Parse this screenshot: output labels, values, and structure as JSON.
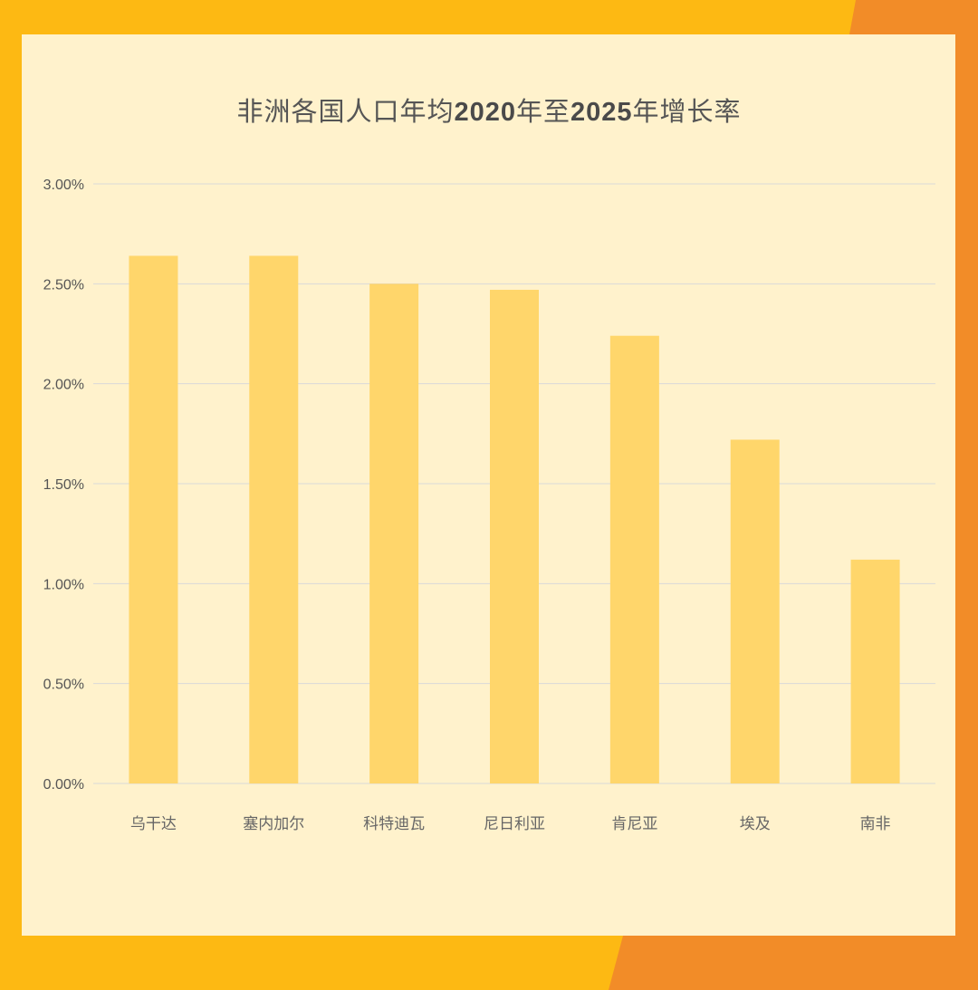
{
  "colors": {
    "background_yellow": "#FDB913",
    "background_orange": "#F28C28",
    "panel": "#FFF2CC",
    "bar": "#FFD66B",
    "gridline": "#D9D9D9"
  },
  "chart_data": {
    "type": "bar",
    "title_parts": [
      "非洲各国人口年均",
      "2020",
      "年至",
      "2025",
      "年增长率"
    ],
    "categories": [
      "乌干达",
      "塞内加尔",
      "科特迪瓦",
      "尼日利亚",
      "肯尼亚",
      "埃及",
      "南非"
    ],
    "values": [
      2.64,
      2.64,
      2.5,
      2.47,
      2.24,
      1.72,
      1.12
    ],
    "unit": "%",
    "ylim": [
      0,
      3
    ],
    "yticks": [
      "0.00%",
      "0.50%",
      "1.00%",
      "1.50%",
      "2.00%",
      "2.50%",
      "3.00%"
    ],
    "ytick_values": [
      0,
      0.5,
      1,
      1.5,
      2,
      2.5,
      3
    ],
    "grid": true,
    "legend": "none"
  }
}
